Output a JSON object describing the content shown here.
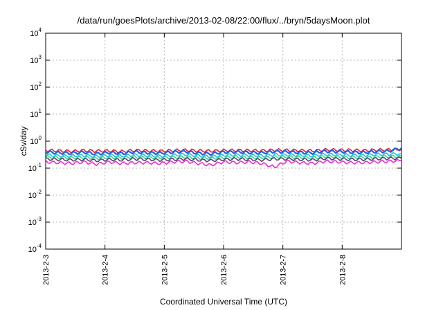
{
  "chart_data": {
    "type": "line",
    "title": "/data/run/goesPlots/archive/2013-02-08/22:00/flux/../bryn/5daysMoon.plot",
    "xlabel": "Coordinated Universal Time (UTC)",
    "ylabel": "cSv/day",
    "yscale": "log",
    "ylim": [
      0.0001,
      10000
    ],
    "y_ticks": [
      {
        "base": "10",
        "exp": "4"
      },
      {
        "base": "10",
        "exp": "3"
      },
      {
        "base": "10",
        "exp": "2"
      },
      {
        "base": "10",
        "exp": "1"
      },
      {
        "base": "10",
        "exp": "0"
      },
      {
        "base": "10",
        "exp": "-1"
      },
      {
        "base": "10",
        "exp": "-2"
      },
      {
        "base": "10",
        "exp": "-3"
      },
      {
        "base": "10",
        "exp": "-4"
      }
    ],
    "xlim": [
      "2013-02-03",
      "2013-02-09"
    ],
    "x_ticks": [
      "2013-2-3",
      "2013-2-4",
      "2013-2-5",
      "2013-2-6",
      "2013-2-7",
      "2013-2-8"
    ],
    "grid": true,
    "series": [
      {
        "color": "#e8202a",
        "level": 0.44,
        "values": [
          0.46,
          0.44,
          0.42,
          0.45,
          0.43,
          0.44,
          0.41,
          0.46,
          0.44,
          0.43,
          0.45,
          0.47,
          0.44,
          0.43,
          0.45,
          0.46,
          0.45,
          0.44,
          0.47,
          0.46,
          0.45,
          0.44,
          0.48,
          0.47,
          0.46,
          0.45,
          0.47,
          0.48,
          0.5
        ]
      },
      {
        "color": "#1f5ff0",
        "level": 0.38,
        "values": [
          0.4,
          0.37,
          0.36,
          0.39,
          0.34,
          0.38,
          0.35,
          0.4,
          0.37,
          0.36,
          0.39,
          0.41,
          0.36,
          0.34,
          0.39,
          0.4,
          0.38,
          0.37,
          0.41,
          0.4,
          0.38,
          0.37,
          0.42,
          0.41,
          0.39,
          0.38,
          0.41,
          0.43,
          0.55
        ]
      },
      {
        "color": "#1fbfe0",
        "level": 0.3,
        "values": [
          0.31,
          0.29,
          0.28,
          0.3,
          0.27,
          0.3,
          0.28,
          0.31,
          0.29,
          0.28,
          0.3,
          0.32,
          0.29,
          0.27,
          0.3,
          0.31,
          0.3,
          0.29,
          0.31,
          0.31,
          0.3,
          0.29,
          0.32,
          0.31,
          0.3,
          0.3,
          0.32,
          0.33,
          0.34
        ]
      },
      {
        "color": "#3ed38f",
        "level": 0.25,
        "values": [
          0.26,
          0.25,
          0.24,
          0.25,
          0.23,
          0.25,
          0.24,
          0.26,
          0.25,
          0.24,
          0.25,
          0.26,
          0.24,
          0.23,
          0.25,
          0.26,
          0.25,
          0.24,
          0.26,
          0.26,
          0.25,
          0.24,
          0.27,
          0.26,
          0.25,
          0.25,
          0.26,
          0.27,
          0.27
        ]
      },
      {
        "color": "#5a4070",
        "level": 0.21,
        "values": [
          0.22,
          0.21,
          0.2,
          0.21,
          0.19,
          0.21,
          0.2,
          0.22,
          0.21,
          0.2,
          0.21,
          0.22,
          0.2,
          0.19,
          0.21,
          0.22,
          0.21,
          0.2,
          0.22,
          0.22,
          0.21,
          0.2,
          0.23,
          0.22,
          0.21,
          0.21,
          0.22,
          0.23,
          0.23
        ]
      },
      {
        "color": "#ee2bd6",
        "level": 0.17,
        "values": [
          0.17,
          0.16,
          0.15,
          0.17,
          0.14,
          0.17,
          0.15,
          0.16,
          0.16,
          0.15,
          0.17,
          0.18,
          0.15,
          0.13,
          0.17,
          0.16,
          0.17,
          0.15,
          0.11,
          0.18,
          0.16,
          0.15,
          0.18,
          0.17,
          0.16,
          0.16,
          0.17,
          0.18,
          0.19
        ]
      }
    ]
  }
}
